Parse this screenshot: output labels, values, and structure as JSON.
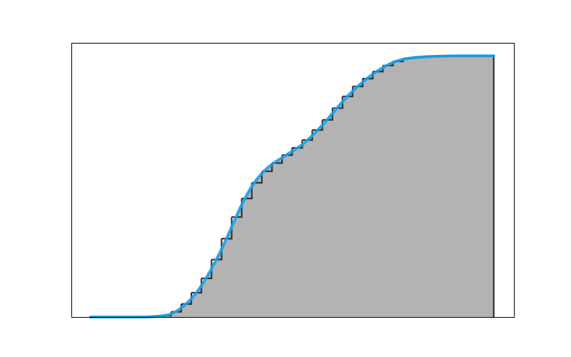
{
  "chart_data": {
    "type": "histogram",
    "bins": [
      0,
      1,
      2,
      3,
      4,
      5,
      6,
      7,
      8,
      9,
      10,
      11,
      12,
      13,
      14,
      15,
      16,
      17,
      18,
      19,
      20,
      21,
      22,
      23,
      24,
      25,
      26,
      27,
      28,
      29,
      30,
      31,
      32,
      33,
      34,
      35,
      36,
      37,
      38,
      39,
      40
    ],
    "values": [
      0,
      0,
      0,
      0,
      0,
      0,
      0.002,
      0.005,
      0.02,
      0.05,
      0.093,
      0.148,
      0.22,
      0.3,
      0.383,
      0.454,
      0.514,
      0.558,
      0.59,
      0.62,
      0.648,
      0.678,
      0.716,
      0.755,
      0.8,
      0.845,
      0.883,
      0.913,
      0.94,
      0.963,
      0.979,
      0.99,
      0.995,
      0.998,
      1,
      1,
      1,
      1,
      1,
      1
    ],
    "color": "#333333",
    "line": {
      "x": [
        0,
        1,
        2,
        3,
        4,
        5,
        6,
        7,
        8,
        9,
        10,
        11,
        12,
        13,
        14,
        15,
        16,
        17,
        18,
        19,
        20,
        21,
        22,
        23,
        24,
        25,
        26,
        27,
        28,
        29,
        30,
        31,
        32,
        33,
        34,
        35,
        36,
        37,
        38,
        39,
        40
      ],
      "values": [
        0,
        0,
        0,
        0,
        0,
        0,
        0.001,
        0.004,
        0.012,
        0.035,
        0.07,
        0.12,
        0.185,
        0.26,
        0.345,
        0.43,
        0.5,
        0.55,
        0.585,
        0.61,
        0.635,
        0.66,
        0.695,
        0.735,
        0.78,
        0.825,
        0.865,
        0.9,
        0.93,
        0.955,
        0.975,
        0.987,
        0.993,
        0.996,
        0.998,
        0.999,
        1,
        1,
        1,
        1,
        1
      ],
      "color": "#1a9ee8",
      "fill": "#b3b3b3"
    },
    "xlim": [
      -1.9,
      42
    ],
    "ylim": [
      0,
      1.05
    ]
  }
}
